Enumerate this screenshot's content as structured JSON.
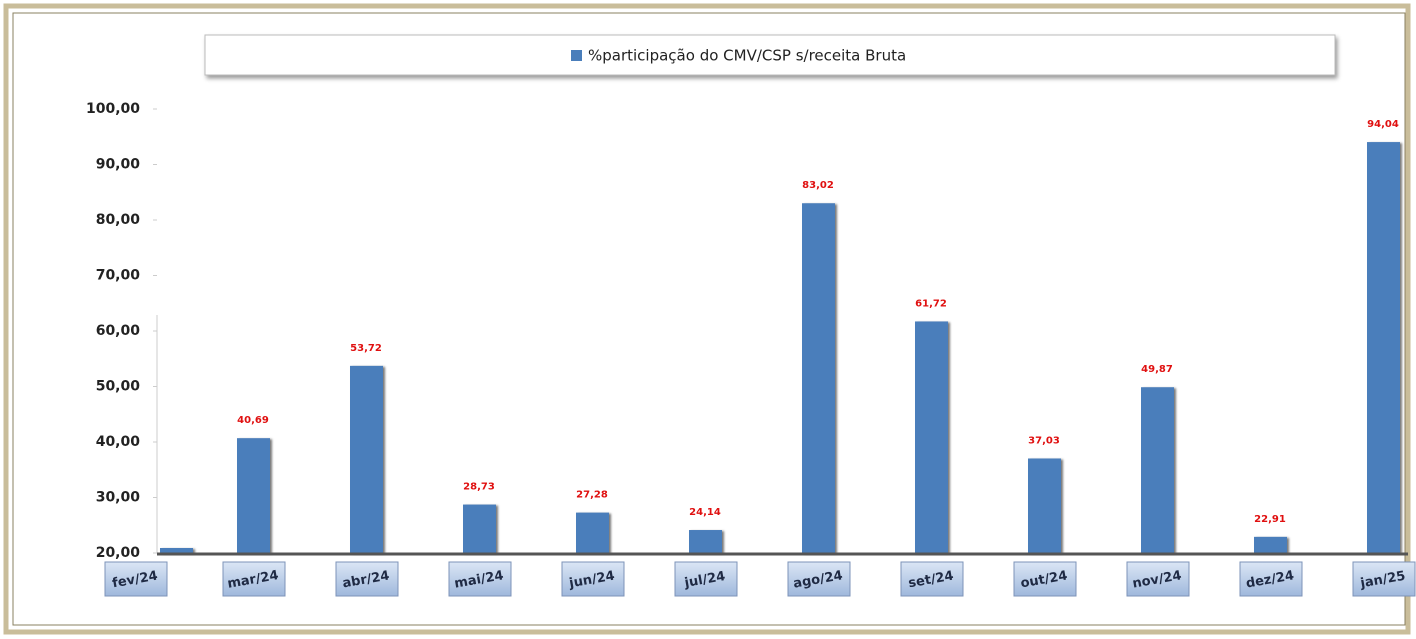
{
  "chart_data": {
    "type": "bar",
    "categories": [
      "fev/24",
      "mar/24",
      "abr/24",
      "mai/24",
      "jun/24",
      "jul/24",
      "ago/24",
      "set/24",
      "out/24",
      "nov/24",
      "dez/24",
      "jan/25"
    ],
    "series": [
      {
        "name": "%participação do CMV/CSP s/receita Bruta",
        "color": "#4a7ebb",
        "values": [
          20.9,
          40.69,
          53.72,
          28.73,
          27.28,
          24.14,
          83.02,
          61.72,
          37.03,
          49.87,
          22.91,
          94.04
        ],
        "value_labels": [
          null,
          "40,69",
          "53,72",
          "28,73",
          "27,28",
          "24,14",
          "83,02",
          "61,72",
          "37,03",
          "49,87",
          "22,91",
          "94,04"
        ]
      }
    ],
    "ylim": [
      20,
      100
    ],
    "yticks": [
      {
        "value": 20,
        "label": "20,00"
      },
      {
        "value": 30,
        "label": "30,00"
      },
      {
        "value": 40,
        "label": "40,00"
      },
      {
        "value": 50,
        "label": "50,00"
      },
      {
        "value": 60,
        "label": "60,00"
      },
      {
        "value": 70,
        "label": "70,00"
      },
      {
        "value": 80,
        "label": "80,00"
      },
      {
        "value": 90,
        "label": "90,00"
      },
      {
        "value": 100,
        "label": "100,00"
      }
    ],
    "legend": "top"
  }
}
